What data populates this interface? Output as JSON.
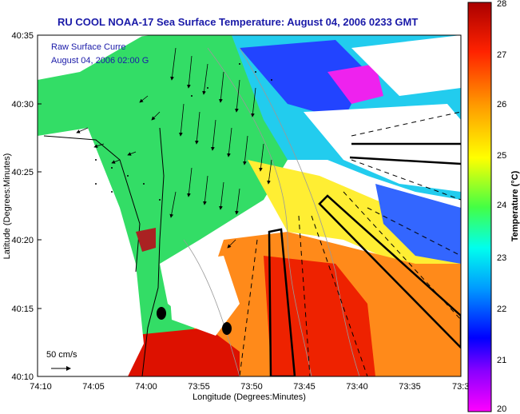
{
  "title": "RU COOL  NOAA-17  Sea Surface Temperature:  August 04, 2006 0233 GMT",
  "overlay": {
    "line1": "Raw Surface Curre",
    "line2": "August 04, 2006 02:00 G"
  },
  "scale_label": "50 cm/s",
  "axes": {
    "xlabel": "Longitude (Degrees:Minutes)",
    "ylabel": "Latitude (Degrees:Minutes)",
    "xticks": [
      "74:10",
      "74:05",
      "74:00",
      "73:55",
      "73:50",
      "73:45",
      "73:40",
      "73:35",
      "73:3"
    ],
    "yticks": [
      "40:35",
      "40:30",
      "40:25",
      "40:20",
      "40:15",
      "40:10"
    ]
  },
  "colorbar": {
    "label": "Temperature (°C)",
    "ticks": [
      "28",
      "27",
      "26",
      "25",
      "24",
      "23",
      "22",
      "21",
      "20"
    ],
    "min": 20,
    "max": 28,
    "colors": [
      "#ff00ff",
      "#2200ff",
      "#0099ff",
      "#00ffee",
      "#44ff44",
      "#ffff00",
      "#ff9900",
      "#ff3300",
      "#aa0000"
    ]
  }
}
